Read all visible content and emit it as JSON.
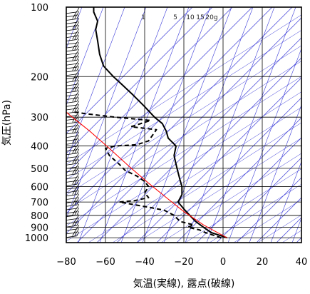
{
  "chart_data": {
    "type": "line",
    "title": "",
    "xlabel": "気温(実線), 露点(破線)",
    "ylabel": "気圧(hPa)",
    "xlim": [
      -80,
      40
    ],
    "ylim_hPa": [
      1050,
      100
    ],
    "y_scale": "log",
    "grid": true,
    "x_ticks": [
      -80,
      -60,
      -40,
      -20,
      0,
      20,
      40
    ],
    "x_tick_labels": [
      "−80",
      "−60",
      "−40",
      "−20",
      "0",
      "20",
      "40"
    ],
    "y_ticks": [
      100,
      200,
      300,
      400,
      500,
      600,
      700,
      800,
      900,
      1000
    ],
    "y_tick_labels": [
      "100",
      "200",
      "300",
      "400",
      "500",
      "600",
      "700",
      "800",
      "900",
      "1000"
    ],
    "mixing_ratio_labels": [
      {
        "text": "1",
        "g": 1
      },
      {
        "text": "5",
        "g": 5
      },
      {
        "text": "10",
        "g": 10
      },
      {
        "text": "15",
        "g": 15
      },
      {
        "text": "20g",
        "g": 20
      }
    ],
    "series": [
      {
        "style": "solid",
        "color": "#000000",
        "points": [
          [
            2,
            1000
          ],
          [
            -2,
            975
          ],
          [
            -6,
            950
          ],
          [
            -10,
            900
          ],
          [
            -14,
            850
          ],
          [
            -17,
            800
          ],
          [
            -20,
            750
          ],
          [
            -23,
            700
          ],
          [
            -21,
            650
          ],
          [
            -21,
            600
          ],
          [
            -22,
            560
          ],
          [
            -23,
            520
          ],
          [
            -24,
            480
          ],
          [
            -25,
            440
          ],
          [
            -24,
            400
          ],
          [
            -28,
            370
          ],
          [
            -29,
            345
          ],
          [
            -31,
            320
          ],
          [
            -35,
            300
          ],
          [
            -40,
            270
          ],
          [
            -46,
            240
          ],
          [
            -52,
            215
          ],
          [
            -56,
            200
          ],
          [
            -61,
            180
          ],
          [
            -63,
            160
          ],
          [
            -64,
            140
          ],
          [
            -65,
            125
          ],
          [
            -64,
            115
          ],
          [
            -66,
            105
          ],
          [
            -66,
            100
          ]
        ]
      },
      {
        "style": "dashed",
        "color": "#000000",
        "points": [
          [
            -1,
            1000
          ],
          [
            -5,
            975
          ],
          [
            -9,
            950
          ],
          [
            -12,
            925
          ],
          [
            -18,
            900
          ],
          [
            -15,
            880
          ],
          [
            -22,
            850
          ],
          [
            -25,
            800
          ],
          [
            -30,
            760
          ],
          [
            -37,
            740
          ],
          [
            -45,
            720
          ],
          [
            -53,
            700
          ],
          [
            -45,
            690
          ],
          [
            -38,
            670
          ],
          [
            -40,
            640
          ],
          [
            -38,
            600
          ],
          [
            -40,
            570
          ],
          [
            -44,
            540
          ],
          [
            -50,
            510
          ],
          [
            -53,
            480
          ],
          [
            -58,
            440
          ],
          [
            -60,
            410
          ],
          [
            -55,
            400
          ],
          [
            -44,
            395
          ],
          [
            -38,
            380
          ],
          [
            -34,
            340
          ],
          [
            -47,
            330
          ],
          [
            -37,
            310
          ],
          [
            -55,
            300
          ],
          [
            -70,
            290
          ],
          [
            -76,
            285
          ]
        ]
      },
      {
        "style": "solid",
        "color": "#ff0000",
        "points": [
          [
            2,
            1000
          ],
          [
            -10,
            880
          ],
          [
            -20,
            770
          ],
          [
            -28,
            680
          ],
          [
            -38,
            580
          ],
          [
            -48,
            490
          ],
          [
            -58,
            410
          ],
          [
            -68,
            345
          ],
          [
            -78,
            295
          ],
          [
            -80,
            285
          ]
        ]
      }
    ],
    "wind_barbs_column_x": -75,
    "colors": {
      "isotherms_dry_adiabats": "#3b3bd9",
      "grid": "#000000",
      "temperature": "#000000",
      "dewpoint": "#000000",
      "parcel": "#ff0000"
    }
  }
}
